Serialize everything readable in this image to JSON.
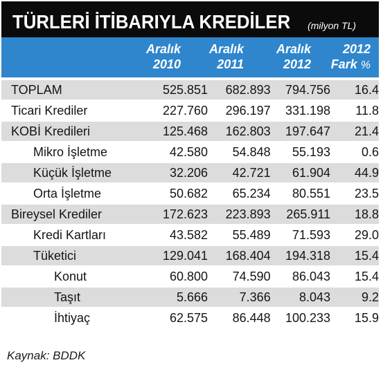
{
  "header": {
    "title": "TÜRLERİ İTİBARIYLA KREDİLER",
    "subtitle": "(milyon TL)"
  },
  "columns": [
    {
      "line1": "Aralık",
      "line2": "2010",
      "suffix": ""
    },
    {
      "line1": "Aralık",
      "line2": "2011",
      "suffix": ""
    },
    {
      "line1": "Aralık",
      "line2": "2012",
      "suffix": ""
    },
    {
      "line1": "2012",
      "line2": "Fark",
      "suffix": "%"
    }
  ],
  "rows": [
    {
      "label": "TOPLAM",
      "indent": 0,
      "v2010": "525.851",
      "v2011": "682.893",
      "v2012": "794.756",
      "diff": "16.4"
    },
    {
      "label": "Ticari Krediler",
      "indent": 0,
      "v2010": "227.760",
      "v2011": "296.197",
      "v2012": "331.198",
      "diff": "11.8"
    },
    {
      "label": "KOBİ Kredileri",
      "indent": 0,
      "v2010": "125.468",
      "v2011": "162.803",
      "v2012": "197.647",
      "diff": "21.4"
    },
    {
      "label": "Mikro İşletme",
      "indent": 1,
      "v2010": "42.580",
      "v2011": "54.848",
      "v2012": "55.193",
      "diff": "0.6"
    },
    {
      "label": "Küçük İşletme",
      "indent": 1,
      "v2010": "32.206",
      "v2011": "42.721",
      "v2012": "61.904",
      "diff": "44.9"
    },
    {
      "label": "Orta İşletme",
      "indent": 1,
      "v2010": "50.682",
      "v2011": "65.234",
      "v2012": "80.551",
      "diff": "23.5"
    },
    {
      "label": "Bireysel Krediler",
      "indent": 0,
      "v2010": "172.623",
      "v2011": "223.893",
      "v2012": "265.911",
      "diff": "18.8"
    },
    {
      "label": "Kredi Kartları",
      "indent": 1,
      "v2010": "43.582",
      "v2011": "55.489",
      "v2012": "71.593",
      "diff": "29.0"
    },
    {
      "label": "Tüketici",
      "indent": 1,
      "v2010": "129.041",
      "v2011": "168.404",
      "v2012": "194.318",
      "diff": "15.4"
    },
    {
      "label": "Konut",
      "indent": 2,
      "v2010": "60.800",
      "v2011": "74.590",
      "v2012": "86.043",
      "diff": "15.4"
    },
    {
      "label": "Taşıt",
      "indent": 2,
      "v2010": "5.666",
      "v2011": "7.366",
      "v2012": "8.043",
      "diff": "9.2"
    },
    {
      "label": "İhtiyaç",
      "indent": 2,
      "v2010": "62.575",
      "v2011": "86.448",
      "v2012": "100.233",
      "diff": "15.9"
    }
  ],
  "source": "Kaynak: BDDK",
  "colors": {
    "title_bg": "#0b0b0b",
    "header_bg": "#2f86cc",
    "row_alt_bg": "#dcdcdc"
  }
}
